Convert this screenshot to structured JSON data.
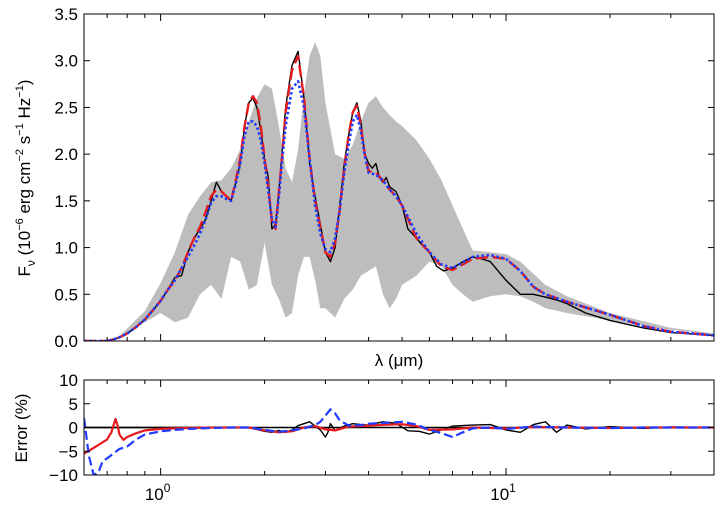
{
  "chart_data": [
    {
      "type": "line",
      "panel": "top",
      "xscale": "log",
      "xlim": [
        0.6,
        40
      ],
      "ylim": [
        0,
        3.5
      ],
      "xlabel": "λ (μm)",
      "ylabel": "F_ν (10^−6 erg cm^−2 s^−1 Hz^−1)",
      "xticks": [
        1,
        10
      ],
      "xtick_labels": [
        "10^0",
        "10^1"
      ],
      "yticks": [
        0.0,
        0.5,
        1.0,
        1.5,
        2.0,
        2.5,
        3.0,
        3.5
      ],
      "ytick_labels": [
        "0.0",
        "0.5",
        "1.0",
        "1.5",
        "2.0",
        "2.5",
        "3.0",
        "3.5"
      ],
      "grid": false,
      "series": [
        {
          "role": "high-resolution band (gray fill)",
          "color": "#bdbdbd",
          "x": [
            0.6,
            0.75,
            0.9,
            1.0,
            1.1,
            1.2,
            1.3,
            1.4,
            1.5,
            1.6,
            1.7,
            1.8,
            1.9,
            2.0,
            2.1,
            2.2,
            2.3,
            2.4,
            2.5,
            2.6,
            2.7,
            2.8,
            2.9,
            3.0,
            3.2,
            3.4,
            3.6,
            3.8,
            4.0,
            4.2,
            4.4,
            4.6,
            4.8,
            5.0,
            5.5,
            6.0,
            6.5,
            7.0,
            7.5,
            8.0,
            9.0,
            10.0,
            11.0,
            12.0,
            13.0,
            15.0,
            20.0,
            30.0,
            40.0
          ],
          "upper": [
            0.0,
            0.03,
            0.32,
            0.62,
            0.95,
            1.35,
            1.55,
            1.7,
            1.72,
            1.85,
            2.05,
            2.35,
            2.6,
            2.75,
            2.7,
            2.3,
            1.85,
            1.7,
            2.05,
            2.65,
            3.05,
            3.2,
            3.05,
            2.55,
            2.0,
            1.95,
            2.1,
            2.35,
            2.55,
            2.62,
            2.5,
            2.42,
            2.35,
            2.3,
            2.15,
            1.95,
            1.72,
            1.45,
            1.2,
            0.97,
            0.95,
            0.93,
            0.85,
            0.72,
            0.6,
            0.48,
            0.3,
            0.14,
            0.08
          ],
          "lower": [
            0.0,
            0.03,
            0.2,
            0.3,
            0.2,
            0.25,
            0.5,
            0.6,
            0.45,
            0.9,
            0.85,
            0.55,
            0.6,
            1.05,
            0.6,
            0.45,
            0.25,
            0.3,
            0.7,
            0.9,
            0.9,
            0.65,
            0.35,
            0.35,
            0.25,
            0.45,
            0.55,
            0.7,
            0.75,
            0.8,
            0.5,
            0.35,
            0.45,
            0.6,
            0.7,
            0.85,
            0.8,
            0.6,
            0.5,
            0.42,
            0.48,
            0.5,
            0.48,
            0.42,
            0.35,
            0.3,
            0.22,
            0.12,
            0.07
          ]
        },
        {
          "role": "reference spectrum (black)",
          "color": "#000000",
          "x": [
            0.6,
            0.7,
            0.75,
            0.8,
            0.85,
            0.9,
            0.95,
            1.0,
            1.05,
            1.1,
            1.15,
            1.2,
            1.25,
            1.3,
            1.35,
            1.4,
            1.45,
            1.5,
            1.55,
            1.6,
            1.65,
            1.7,
            1.75,
            1.8,
            1.85,
            1.9,
            1.95,
            2.0,
            2.05,
            2.1,
            2.15,
            2.2,
            2.25,
            2.3,
            2.4,
            2.5,
            2.6,
            2.7,
            2.8,
            2.9,
            3.0,
            3.1,
            3.2,
            3.3,
            3.4,
            3.5,
            3.6,
            3.7,
            3.8,
            3.9,
            4.0,
            4.1,
            4.2,
            4.3,
            4.4,
            4.5,
            4.6,
            4.8,
            5.0,
            5.2,
            5.5,
            5.8,
            6.0,
            6.3,
            6.6,
            7.0,
            7.5,
            8.0,
            8.5,
            9.0,
            10.0,
            11.0,
            12.0,
            13.0,
            14.0,
            15.0,
            17.0,
            20.0,
            25.0,
            30.0,
            40.0
          ],
          "y": [
            0.0,
            0.0,
            0.03,
            0.08,
            0.15,
            0.23,
            0.33,
            0.43,
            0.55,
            0.68,
            0.7,
            0.95,
            1.1,
            1.2,
            1.3,
            1.5,
            1.7,
            1.6,
            1.55,
            1.5,
            1.7,
            1.9,
            2.3,
            2.55,
            2.6,
            2.5,
            2.25,
            1.95,
            1.75,
            1.2,
            1.25,
            1.6,
            2.05,
            2.5,
            2.95,
            3.1,
            2.6,
            1.9,
            1.55,
            1.25,
            0.95,
            0.85,
            1.0,
            1.45,
            1.9,
            2.2,
            2.45,
            2.55,
            2.35,
            2.0,
            1.9,
            1.85,
            1.9,
            1.75,
            1.7,
            1.75,
            1.65,
            1.6,
            1.45,
            1.2,
            1.1,
            1.0,
            0.95,
            0.8,
            0.75,
            0.78,
            0.85,
            0.9,
            0.88,
            0.85,
            0.65,
            0.5,
            0.5,
            0.47,
            0.44,
            0.4,
            0.3,
            0.22,
            0.14,
            0.09,
            0.06
          ]
        },
        {
          "role": "red dashed model",
          "color": "#e41a1c",
          "x": [
            0.6,
            0.7,
            0.75,
            0.8,
            0.85,
            0.9,
            0.95,
            1.0,
            1.05,
            1.1,
            1.15,
            1.2,
            1.25,
            1.3,
            1.35,
            1.4,
            1.45,
            1.5,
            1.55,
            1.6,
            1.65,
            1.7,
            1.75,
            1.8,
            1.85,
            1.9,
            1.95,
            2.0,
            2.05,
            2.1,
            2.15,
            2.2,
            2.25,
            2.3,
            2.4,
            2.5,
            2.6,
            2.7,
            2.8,
            2.9,
            3.0,
            3.1,
            3.2,
            3.3,
            3.4,
            3.5,
            3.6,
            3.7,
            3.8,
            3.9,
            4.0,
            4.2,
            4.4,
            4.6,
            4.8,
            5.0,
            5.5,
            6.0,
            6.5,
            7.0,
            7.5,
            8.0,
            9.0,
            10.0,
            11.0,
            12.0,
            13.0,
            15.0,
            20.0,
            25.0,
            30.0,
            40.0
          ],
          "y": [
            0.0,
            0.0,
            0.03,
            0.08,
            0.15,
            0.23,
            0.33,
            0.43,
            0.55,
            0.65,
            0.78,
            0.95,
            1.1,
            1.22,
            1.38,
            1.55,
            1.62,
            1.6,
            1.55,
            1.5,
            1.72,
            1.95,
            2.3,
            2.55,
            2.62,
            2.55,
            2.3,
            1.95,
            1.65,
            1.28,
            1.2,
            1.6,
            2.0,
            2.45,
            2.9,
            3.05,
            2.6,
            1.95,
            1.5,
            1.22,
            0.95,
            0.9,
            1.05,
            1.4,
            1.85,
            2.2,
            2.45,
            2.52,
            2.3,
            2.0,
            1.82,
            1.8,
            1.72,
            1.62,
            1.55,
            1.45,
            1.1,
            0.95,
            0.8,
            0.76,
            0.82,
            0.88,
            0.9,
            0.88,
            0.75,
            0.58,
            0.5,
            0.42,
            0.28,
            0.16,
            0.1,
            0.06
          ]
        },
        {
          "role": "blue dotted model",
          "color": "#1f3bff",
          "x": [
            0.6,
            0.7,
            0.75,
            0.8,
            0.85,
            0.9,
            0.95,
            1.0,
            1.05,
            1.1,
            1.15,
            1.2,
            1.25,
            1.3,
            1.35,
            1.4,
            1.45,
            1.5,
            1.55,
            1.6,
            1.65,
            1.7,
            1.75,
            1.8,
            1.85,
            1.9,
            1.95,
            2.0,
            2.05,
            2.1,
            2.15,
            2.2,
            2.25,
            2.3,
            2.4,
            2.5,
            2.6,
            2.7,
            2.8,
            2.9,
            3.0,
            3.1,
            3.2,
            3.3,
            3.4,
            3.5,
            3.6,
            3.7,
            3.8,
            3.9,
            4.0,
            4.2,
            4.4,
            4.6,
            4.8,
            5.0,
            5.5,
            6.0,
            6.5,
            7.0,
            7.5,
            8.0,
            9.0,
            10.0,
            11.0,
            12.0,
            13.0,
            15.0,
            20.0,
            25.0,
            30.0,
            40.0
          ],
          "y": [
            0.0,
            0.0,
            0.03,
            0.08,
            0.15,
            0.23,
            0.33,
            0.43,
            0.55,
            0.65,
            0.78,
            0.9,
            1.02,
            1.15,
            1.3,
            1.48,
            1.55,
            1.55,
            1.52,
            1.5,
            1.68,
            1.9,
            2.2,
            2.35,
            2.35,
            2.3,
            2.15,
            1.9,
            1.6,
            1.3,
            1.22,
            1.55,
            1.95,
            2.3,
            2.7,
            2.78,
            2.5,
            1.95,
            1.45,
            1.15,
            0.98,
            0.95,
            1.1,
            1.4,
            1.8,
            2.1,
            2.35,
            2.42,
            2.25,
            1.98,
            1.8,
            1.78,
            1.72,
            1.62,
            1.55,
            1.45,
            1.15,
            0.95,
            0.82,
            0.78,
            0.84,
            0.9,
            0.92,
            0.88,
            0.75,
            0.58,
            0.5,
            0.42,
            0.28,
            0.16,
            0.1,
            0.06
          ]
        }
      ]
    },
    {
      "type": "line",
      "panel": "bottom",
      "xscale": "log",
      "xlim": [
        0.6,
        40
      ],
      "ylim": [
        -10,
        10
      ],
      "xlabel": "",
      "ylabel": "Error (%)",
      "xticks": [
        1,
        10
      ],
      "xtick_labels": [
        "10^0",
        "10^1"
      ],
      "yticks": [
        -10,
        -5,
        0,
        5,
        10
      ],
      "ytick_labels": [
        "−10",
        "−5",
        "0",
        "5",
        "10"
      ],
      "grid": false,
      "series": [
        {
          "role": "reference residual (black)",
          "color": "#000000",
          "x": [
            0.6,
            0.7,
            0.8,
            0.9,
            1.0,
            1.2,
            1.4,
            1.6,
            1.8,
            2.0,
            2.1,
            2.2,
            2.3,
            2.4,
            2.5,
            2.7,
            2.9,
            3.0,
            3.05,
            3.1,
            3.2,
            3.4,
            3.6,
            3.8,
            4.0,
            4.4,
            4.8,
            5.2,
            5.6,
            6.0,
            6.5,
            7.0,
            8.0,
            9.0,
            10.0,
            11.0,
            12.0,
            13.0,
            14.0,
            15.0,
            17.0,
            20.0,
            25.0,
            30.0,
            40.0
          ],
          "y": [
            0.0,
            0.0,
            0.0,
            0.0,
            0.0,
            0.0,
            0.0,
            0.0,
            0.0,
            -0.8,
            -1.0,
            -0.6,
            -1.0,
            -0.5,
            0.4,
            1.2,
            -0.5,
            -2.0,
            -1.0,
            0.8,
            -0.6,
            0.3,
            0.8,
            0.6,
            0.5,
            1.2,
            0.9,
            -0.7,
            -0.8,
            -1.4,
            -0.5,
            0.3,
            0.5,
            0.6,
            -0.5,
            -1.0,
            0.6,
            1.2,
            -1.0,
            0.5,
            -0.3,
            0.2,
            -0.2,
            0.1,
            0.0
          ]
        },
        {
          "role": "red dashed residual",
          "color": "#e41a1c",
          "x": [
            0.6,
            0.65,
            0.7,
            0.72,
            0.74,
            0.75,
            0.76,
            0.78,
            0.8,
            0.85,
            0.9,
            1.0,
            1.1,
            1.2,
            1.4,
            1.6,
            1.8,
            2.0,
            2.2,
            2.4,
            2.6,
            2.8,
            3.0,
            3.2,
            3.5,
            4.0,
            4.5,
            5.0,
            5.5,
            6.0,
            7.0,
            8.0,
            10.0,
            12.0,
            15.0,
            20.0,
            25.0,
            30.0,
            40.0
          ],
          "y": [
            -5.5,
            -4.0,
            -2.5,
            -1.0,
            1.8,
            0.5,
            -1.5,
            -2.6,
            -2.0,
            -1.2,
            -0.6,
            -0.3,
            -0.2,
            -0.1,
            0.0,
            0.0,
            0.0,
            -0.6,
            -1.0,
            -0.8,
            0.0,
            0.3,
            -0.4,
            -0.6,
            0.2,
            0.4,
            0.6,
            0.7,
            0.3,
            -0.5,
            -0.4,
            0.0,
            -0.2,
            0.1,
            0.0,
            -0.1,
            0.0,
            0.0,
            0.0
          ]
        },
        {
          "role": "blue dotted residual",
          "color": "#1f3bff",
          "x": [
            0.6,
            0.62,
            0.64,
            0.66,
            0.68,
            0.7,
            0.73,
            0.76,
            0.8,
            0.85,
            0.9,
            1.0,
            1.1,
            1.2,
            1.4,
            1.6,
            1.8,
            2.0,
            2.2,
            2.4,
            2.6,
            2.8,
            2.9,
            3.0,
            3.1,
            3.2,
            3.3,
            3.5,
            3.8,
            4.0,
            4.5,
            5.0,
            5.5,
            6.0,
            6.5,
            7.0,
            7.5,
            8.0,
            9.0,
            10.0,
            12.0,
            15.0,
            20.0,
            25.0,
            30.0,
            40.0
          ],
          "y": [
            2.0,
            -6.0,
            -10.0,
            -9.5,
            -7.0,
            -6.5,
            -5.5,
            -4.5,
            -4.0,
            -2.5,
            -1.5,
            -0.8,
            -0.5,
            -0.3,
            -0.1,
            0.0,
            0.0,
            -0.5,
            -0.9,
            -0.6,
            -0.2,
            0.5,
            1.2,
            2.5,
            3.8,
            3.0,
            1.5,
            0.4,
            0.5,
            0.8,
            1.0,
            1.2,
            0.6,
            -0.5,
            -1.2,
            -2.0,
            -1.0,
            -0.2,
            0.0,
            -0.3,
            0.2,
            0.0,
            -0.1,
            0.0,
            0.0,
            0.0
          ]
        }
      ]
    }
  ]
}
